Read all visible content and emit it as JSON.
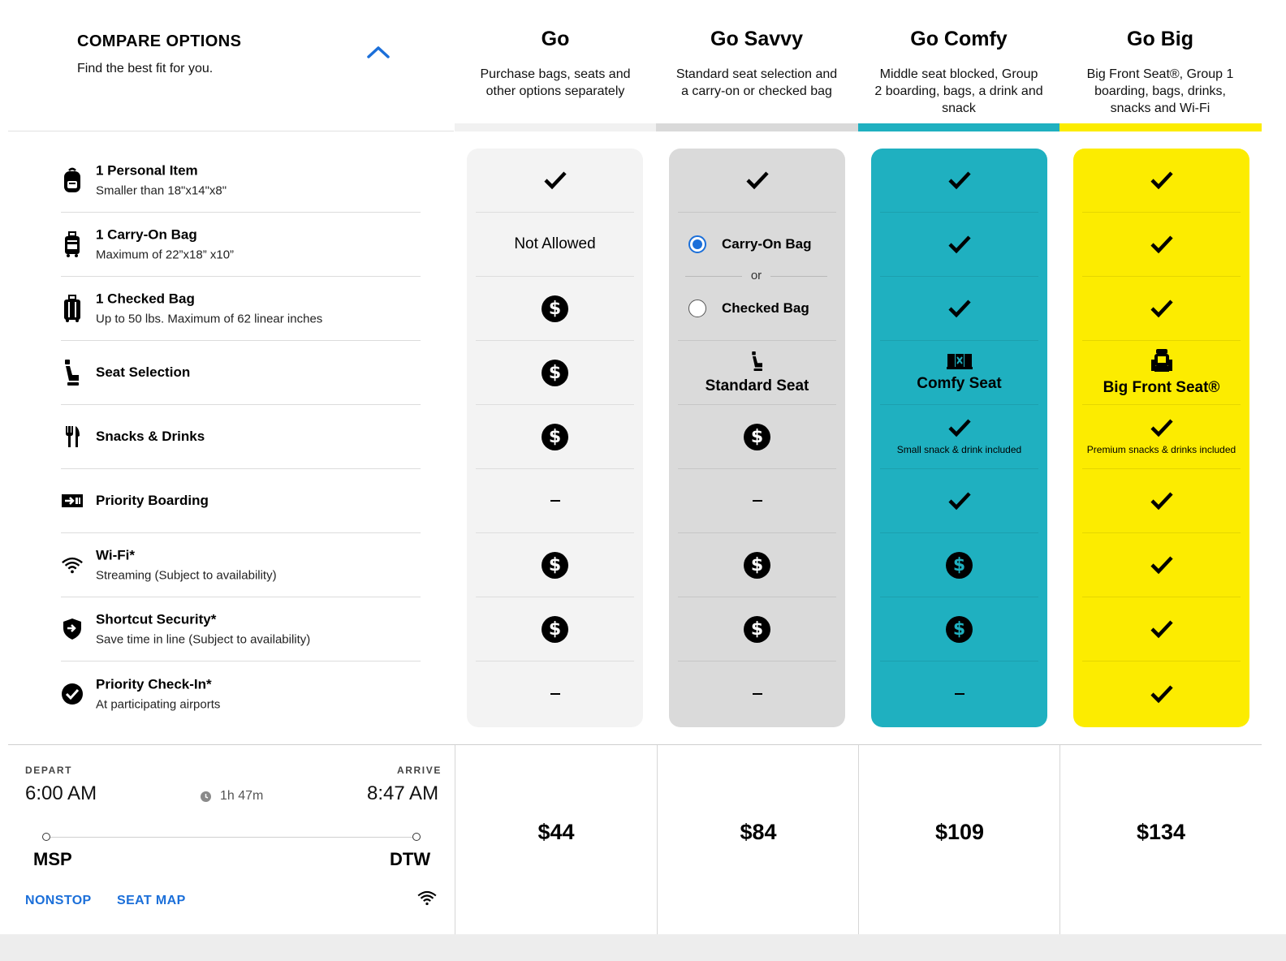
{
  "header": {
    "title": "COMPARE OPTIONS",
    "subtitle": "Find the best fit for you."
  },
  "plans": [
    {
      "name": "Go",
      "desc": "Purchase bags, seats and other options separately",
      "bar_color": "#f1f1f1",
      "col_color": "#f3f3f3",
      "price": "$44"
    },
    {
      "name": "Go Savvy",
      "desc": "Standard seat selection and a carry-on or checked bag",
      "bar_color": "#d9d9d9",
      "col_color": "#dadada",
      "price": "$84"
    },
    {
      "name": "Go Comfy",
      "desc": "Middle seat blocked, Group 2 boarding, bags, a drink and snack",
      "bar_color": "#1fb0c0",
      "col_color": "#1fb0c0",
      "price": "$109"
    },
    {
      "name": "Go Big",
      "desc": "Big Front Seat®, Group 1 boarding, bags, drinks, snacks and Wi-Fi",
      "bar_color": "#fcec00",
      "col_color": "#fcec00",
      "price": "$134"
    }
  ],
  "features": [
    {
      "title": "1 Personal Item",
      "sub": "Smaller than 18\"x14\"x8\"",
      "icon": "backpack-icon"
    },
    {
      "title": "1 Carry-On Bag",
      "sub": "Maximum of 22”x18” x10”",
      "icon": "carry-on-icon"
    },
    {
      "title": "1 Checked Bag",
      "sub": "Up to 50 lbs. Maximum of 62 linear inches",
      "icon": "checked-bag-icon"
    },
    {
      "title": "Seat Selection",
      "sub": "",
      "icon": "seat-icon"
    },
    {
      "title": "Snacks & Drinks",
      "sub": "",
      "icon": "fork-knife-icon"
    },
    {
      "title": "Priority Boarding",
      "sub": "",
      "icon": "boarding-icon"
    },
    {
      "title": "Wi-Fi*",
      "sub": "Streaming (Subject to availability)",
      "icon": "wifi-icon"
    },
    {
      "title": "Shortcut Security*",
      "sub": "Save time in line (Subject to availability)",
      "icon": "shield-icon"
    },
    {
      "title": "Priority Check-In*",
      "sub": "At participating airports",
      "icon": "check-circle-icon"
    }
  ],
  "cells": {
    "go_not_allowed": "Not Allowed",
    "savvy_option_carry": "Carry-On Bag",
    "savvy_or": "or",
    "savvy_option_checked": "Checked Bag",
    "savvy_seat": "Standard Seat",
    "comfy_seat": "Comfy Seat",
    "comfy_snack_note": "Small snack & drink included",
    "big_seat": "Big Front Seat®",
    "big_snack_note": "Premium snacks & drinks included",
    "dollar_glyph": "$"
  },
  "flight": {
    "depart_label": "DEPART",
    "arrive_label": "ARRIVE",
    "depart_time": "6:00 AM",
    "arrive_time": "8:47 AM",
    "duration": "1h 47m",
    "origin": "MSP",
    "destination": "DTW",
    "nonstop": "NONSTOP",
    "seat_map": "SEAT MAP"
  },
  "colors": {
    "accent": "#1b6fd9",
    "comfy": "#1fb0c0",
    "big": "#fcec00"
  }
}
